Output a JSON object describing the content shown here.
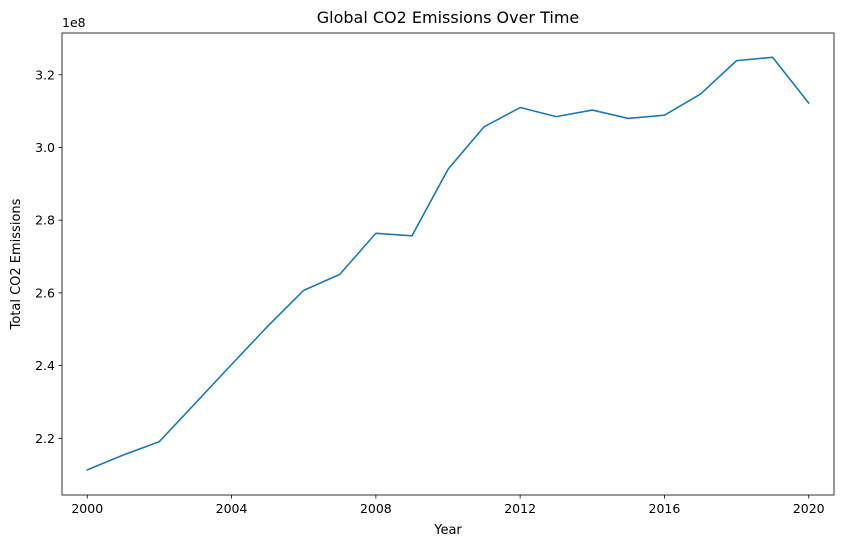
{
  "chart_data": {
    "type": "line",
    "title": "Global CO2 Emissions Over Time",
    "xlabel": "Year",
    "ylabel": "Total CO2 Emissions",
    "y_offset_label": "1e8",
    "y_multiplier": 100000000,
    "x": [
      2000,
      2001,
      2002,
      2003,
      2004,
      2005,
      2006,
      2007,
      2008,
      2009,
      2010,
      2011,
      2012,
      2013,
      2014,
      2015,
      2016,
      2017,
      2018,
      2019,
      2020
    ],
    "series": [
      {
        "values": [
          2.113,
          2.154,
          2.191,
          2.297,
          2.403,
          2.508,
          2.607,
          2.651,
          2.764,
          2.757,
          2.94,
          3.057,
          3.11,
          3.085,
          3.103,
          3.08,
          3.089,
          3.147,
          3.239,
          3.248,
          3.122
        ],
        "color": "#1f77b4"
      }
    ],
    "xlim": [
      1999.3,
      2020.7
    ],
    "ylim": [
      2.044,
      3.315
    ],
    "xticks": [
      2000,
      2004,
      2008,
      2012,
      2016,
      2020
    ],
    "xtick_labels": [
      "2000",
      "2004",
      "2008",
      "2012",
      "2016",
      "2020"
    ],
    "yticks": [
      2.2,
      2.4,
      2.6,
      2.8,
      3.0,
      3.2
    ],
    "ytick_labels": [
      "2.2",
      "2.4",
      "2.6",
      "2.8",
      "3.0",
      "3.2"
    ],
    "grid": false
  }
}
